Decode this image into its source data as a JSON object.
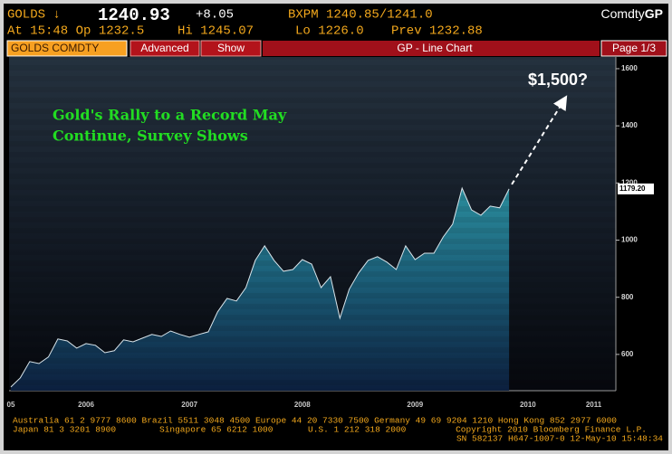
{
  "header": {
    "ticker": "GOLDS ↓",
    "price": "1240.93",
    "change": "+8.05",
    "bid_ask": "BXPM 1240.85/1241.0",
    "source": "Comdty",
    "function": "GP",
    "time_open": "At 15:48 Op 1232.5",
    "high": "Hi 1245.07",
    "low": "Lo 1226.0",
    "prev": "Prev 1232.88"
  },
  "toolbar": {
    "security": "GOLDS COMDTY",
    "advanced": "Advanced",
    "show": "Show",
    "chart_name": "GP - Line Chart",
    "page": "Page 1/3"
  },
  "chart_data": {
    "type": "area",
    "title": "Gold's Rally to a Record May",
    "subtitle": "Continue, Survey Shows",
    "annotation": "$1,500?",
    "categories": [
      "05",
      null,
      null,
      null,
      null,
      null,
      null,
      null,
      "2006",
      null,
      null,
      null,
      null,
      null,
      null,
      null,
      null,
      null,
      null,
      "2007",
      null,
      null,
      null,
      null,
      null,
      null,
      null,
      null,
      null,
      null,
      null,
      "2008",
      null,
      null,
      null,
      null,
      null,
      null,
      null,
      null,
      null,
      null,
      null,
      "2009",
      null,
      null,
      null,
      null,
      null,
      null,
      null,
      null,
      null,
      null,
      null,
      "2010",
      null,
      null,
      null,
      null,
      null,
      null,
      "2011"
    ],
    "values": [
      486,
      518,
      575,
      568,
      591,
      654,
      647,
      622,
      638,
      632,
      606,
      613,
      651,
      644,
      657,
      670,
      663,
      682,
      670,
      660,
      670,
      679,
      749,
      796,
      787,
      834,
      929,
      980,
      929,
      891,
      897,
      932,
      916,
      834,
      872,
      727,
      828,
      885,
      929,
      942,
      923,
      897,
      980,
      932,
      954,
      954,
      1011,
      1056,
      1182,
      1106,
      1087,
      1119,
      1113,
      1179.2,
      null,
      null,
      null,
      null,
      null,
      null,
      null,
      null,
      null
    ],
    "last_value_label": "1179.20",
    "color": "#2a8c9c",
    "ylim": [
      473,
      1641
    ],
    "yticks": [
      600,
      800,
      1000,
      1200,
      1400,
      1600
    ],
    "grid": false
  },
  "footer": {
    "line1": "Australia 61 2 9777 8600 Brazil 5511 3048 4500 Europe 44 20 7330 7500 Germany 49 69 9204 1210 Hong Kong 852 2977 6000",
    "japan": "Japan 81 3 3201 8900",
    "singapore": "Singapore 65 6212 1000",
    "us": "U.S. 1 212 318 2000",
    "copyright": "Copyright 2010 Bloomberg Finance L.P.",
    "serial": "SN 582137 H647-1007-0 12-May-10 15:48:34"
  }
}
